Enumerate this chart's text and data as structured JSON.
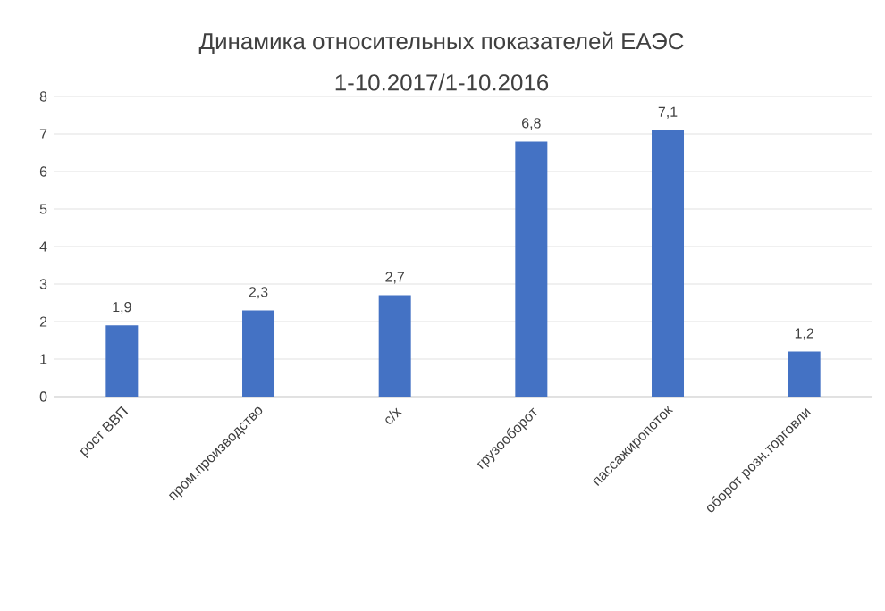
{
  "chart_data": {
    "type": "bar",
    "title": "Динамика относительных показателей ЕАЭС",
    "subtitle": "1-10.2017/1-10.2016",
    "categories": [
      "рост ВВП",
      "пром.производство",
      "с/х",
      "грузооборот",
      "пассажиропоток",
      "оборот розн.торговли"
    ],
    "values": [
      1.9,
      2.3,
      2.7,
      6.8,
      7.1,
      1.2
    ],
    "value_labels": [
      "1,9",
      "2,3",
      "2,7",
      "6,8",
      "7,1",
      "1,2"
    ],
    "color": "#4472c4",
    "ylim": [
      0,
      8
    ],
    "yticks": [
      0,
      1,
      2,
      3,
      4,
      5,
      6,
      7,
      8
    ],
    "grid": "y"
  }
}
